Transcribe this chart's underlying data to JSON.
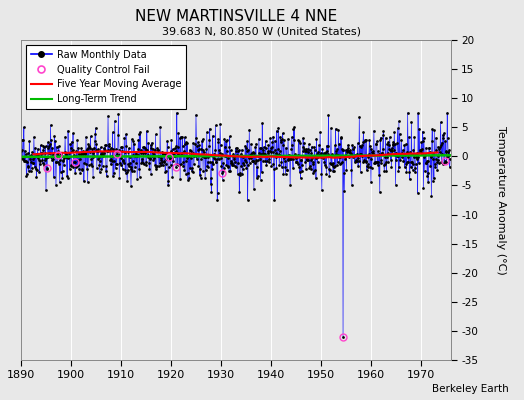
{
  "title": "NEW MARTINSVILLE 4 NNE",
  "subtitle": "39.683 N, 80.850 W (United States)",
  "ylabel_right": "Temperature Anomaly (°C)",
  "xlim": [
    1890,
    1976
  ],
  "ylim": [
    -35,
    20
  ],
  "yticks": [
    -35,
    -30,
    -25,
    -20,
    -15,
    -10,
    -5,
    0,
    5,
    10,
    15,
    20
  ],
  "xticks": [
    1890,
    1900,
    1910,
    1920,
    1930,
    1940,
    1950,
    1960,
    1970
  ],
  "bg_color": "#e8e8e8",
  "grid_color": "white",
  "line_color_raw": "#0000ff",
  "dot_color_raw": "#000000",
  "line_color_ma": "#ff0000",
  "line_color_trend": "#00bb00",
  "qc_color": "#ff44cc",
  "outlier_x": 1954.5,
  "outlier_y": -31.0,
  "watermark": "Berkeley Earth",
  "seed": 42
}
